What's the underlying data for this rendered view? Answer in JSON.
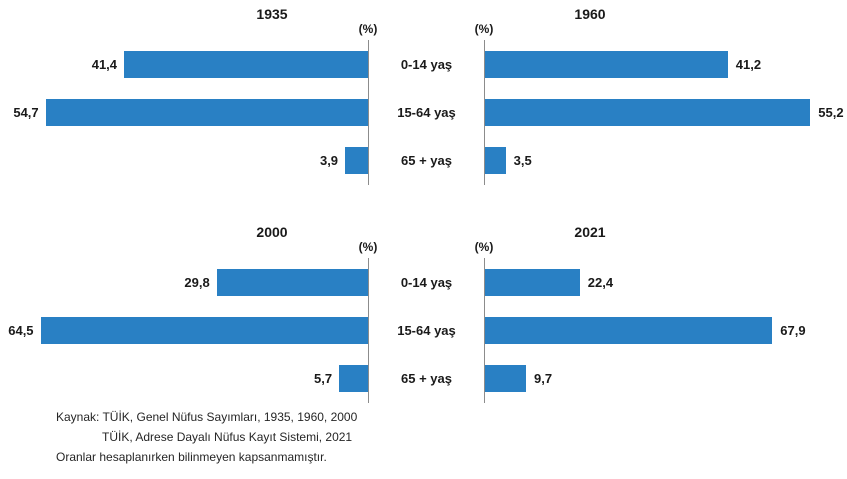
{
  "colors": {
    "bar": "#2980c4",
    "axis": "#8c8c8c",
    "text": "#1a1a1a"
  },
  "age_group_labels": [
    "0-14 yaş",
    "15-64 yaş",
    "65 + yaş"
  ],
  "chart_data": [
    {
      "type": "bar",
      "title": "1935",
      "orientation": "horizontal",
      "direction": "left",
      "categories": [
        "0-14 yaş",
        "15-64 yaş",
        "65 + yaş"
      ],
      "values": [
        41.4,
        54.7,
        3.9
      ],
      "value_labels": [
        "41,4",
        "54,7",
        "3,9"
      ],
      "unit_label": "(%)",
      "xlim": [
        0,
        56
      ],
      "grid": false
    },
    {
      "type": "bar",
      "title": "1960",
      "orientation": "horizontal",
      "direction": "right",
      "categories": [
        "0-14 yaş",
        "15-64 yaş",
        "65 + yaş"
      ],
      "values": [
        41.2,
        55.2,
        3.5
      ],
      "value_labels": [
        "41,2",
        "55,2",
        "3,5"
      ],
      "unit_label": "(%)",
      "xlim": [
        0,
        56
      ],
      "grid": false
    },
    {
      "type": "bar",
      "title": "2000",
      "orientation": "horizontal",
      "direction": "left",
      "categories": [
        "0-14 yaş",
        "15-64 yaş",
        "65 + yaş"
      ],
      "values": [
        29.8,
        64.5,
        5.7
      ],
      "value_labels": [
        "29,8",
        "64,5",
        "5,7"
      ],
      "unit_label": "(%)",
      "xlim": [
        0,
        65
      ],
      "grid": false
    },
    {
      "type": "bar",
      "title": "2021",
      "orientation": "horizontal",
      "direction": "right",
      "categories": [
        "0-14 yaş",
        "15-64 yaş",
        "65 + yaş"
      ],
      "values": [
        22.4,
        67.9,
        9.7
      ],
      "value_labels": [
        "22,4",
        "67,9",
        "9,7"
      ],
      "unit_label": "(%)",
      "xlim": [
        0,
        78
      ],
      "grid": false
    }
  ],
  "footer": {
    "line1": "Kaynak: TÜİK, Genel Nüfus Sayımları, 1935, 1960, 2000",
    "line2": "TÜİK, Adrese Dayalı Nüfus Kayıt Sistemi, 2021",
    "line3": "Oranlar hesaplanırken bilinmeyen kapsanmamıştır."
  }
}
